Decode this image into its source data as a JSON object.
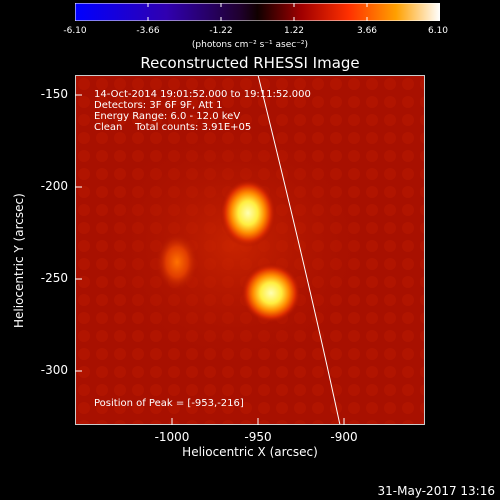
{
  "colorbar": {
    "ticks": [
      "-6.10",
      "-3.66",
      "-1.22",
      "1.22",
      "3.66",
      "6.10"
    ],
    "unit": "(photons cm⁻² s⁻¹ asec⁻²)"
  },
  "title": "Reconstructed RHESSI Image",
  "info": {
    "time_range": "14-Oct-2014 19:01:52.000 to 19:11:52.000",
    "detectors": "Detectors: 3F 6F 9F, Att 1",
    "energy": "Energy Range: 6.0 - 12.0 keV",
    "clean": "Clean    Total counts: 3.91E+05",
    "peak": "Position of Peak = [-953,-216]"
  },
  "axes": {
    "xlabel": "Heliocentric X (arcsec)",
    "ylabel": "Heliocentric Y (arcsec)",
    "xticks": [
      "-1000",
      "-950",
      "-900"
    ],
    "yticks": [
      "-150",
      "-200",
      "-250",
      "-300"
    ]
  },
  "datestamp": "31-May-2017 13:16",
  "colors": {
    "background": "#aa1000",
    "source": "#ffff60",
    "limb": "#ffffff"
  }
}
